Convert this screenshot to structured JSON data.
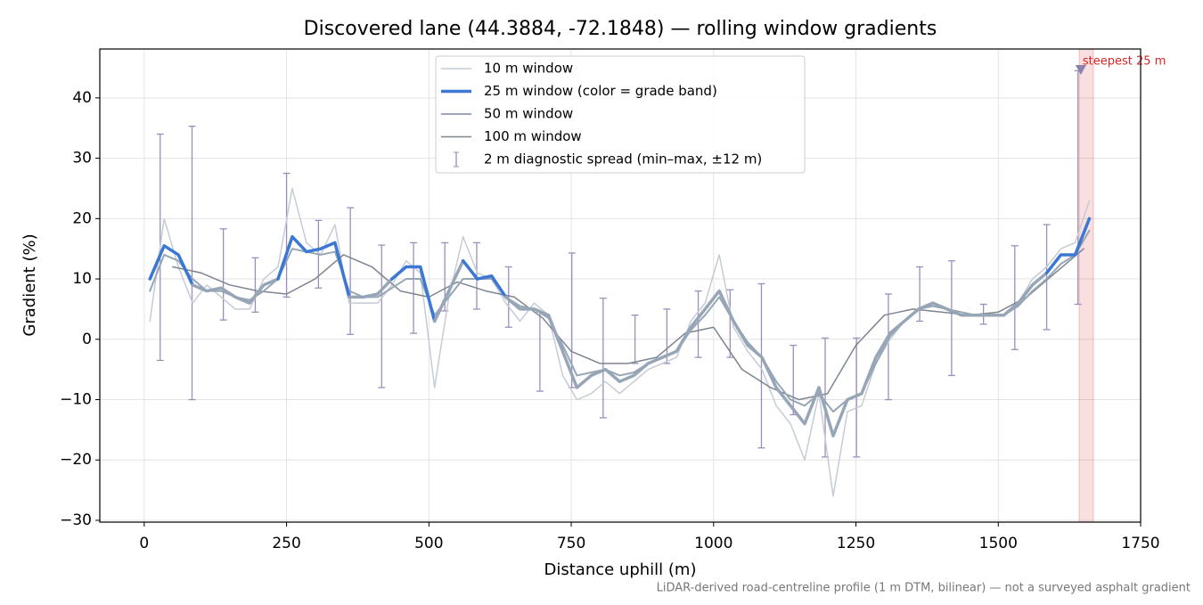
{
  "chart_data": {
    "type": "line",
    "title": "Discovered lane (44.3884, -72.1848) — rolling window gradients",
    "x_label": "Distance uphill (m)",
    "y_label": "Gradient (%)",
    "footnote": "LiDAR-derived road-centreline profile (1 m DTM, bilinear) — not a surveyed asphalt gradient",
    "xlim": [
      -78,
      1750
    ],
    "ylim": [
      -30.3,
      48.1
    ],
    "xticks": [
      0,
      250,
      500,
      750,
      1000,
      1250,
      1500,
      1750
    ],
    "yticks": [
      {
        "value": -30,
        "label": "−30"
      },
      {
        "value": -20,
        "label": "−20"
      },
      {
        "value": -10,
        "label": "−10"
      },
      0,
      10,
      20,
      30,
      40
    ],
    "grid": true,
    "legend": "upper center",
    "series": [
      {
        "name": "10 m window",
        "color": "#c4ccd6",
        "width": 1.5,
        "x": [
          10,
          35,
          60,
          85,
          110,
          135,
          160,
          185,
          210,
          235,
          260,
          285,
          310,
          335,
          360,
          385,
          410,
          435,
          460,
          485,
          510,
          535,
          560,
          585,
          610,
          635,
          660,
          685,
          710,
          735,
          760,
          785,
          810,
          835,
          860,
          885,
          910,
          935,
          960,
          985,
          1010,
          1035,
          1060,
          1085,
          1110,
          1135,
          1160,
          1185,
          1210,
          1235,
          1260,
          1285,
          1310,
          1335,
          1360,
          1385,
          1410,
          1435,
          1460,
          1485,
          1510,
          1535,
          1560,
          1585,
          1610,
          1635,
          1660
        ],
        "values": [
          3,
          20,
          12,
          6,
          9,
          7,
          5,
          5,
          10,
          12,
          25,
          16,
          14,
          19,
          6,
          6,
          6,
          9,
          13,
          11,
          -8,
          7,
          17,
          11,
          10,
          6,
          3,
          6,
          4,
          -6,
          -10,
          -9,
          -7,
          -9,
          -7,
          -5,
          -4,
          -3,
          3,
          6,
          14,
          2,
          -2,
          -5,
          -11,
          -14,
          -20,
          -9,
          -26,
          -12,
          -11,
          -4,
          0,
          3,
          5,
          6,
          5,
          4,
          4,
          4,
          4,
          6,
          10,
          12,
          15,
          16,
          23
        ]
      },
      {
        "name": "25 m window (color = grade band)",
        "color": "#3a78d4",
        "width": 3.5,
        "x": [
          10,
          35,
          60,
          85,
          110,
          135,
          160,
          185,
          210,
          235,
          260,
          285,
          310,
          335,
          360,
          385,
          410,
          435,
          460,
          485,
          510,
          535,
          560,
          585,
          610,
          635,
          660,
          685,
          710,
          735,
          760,
          785,
          810,
          835,
          860,
          885,
          910,
          935,
          960,
          985,
          1010,
          1035,
          1060,
          1085,
          1110,
          1135,
          1160,
          1185,
          1210,
          1235,
          1260,
          1285,
          1310,
          1335,
          1360,
          1385,
          1410,
          1435,
          1460,
          1485,
          1510,
          1535,
          1560,
          1585,
          1610,
          1635,
          1660
        ],
        "values": [
          10,
          15.5,
          14,
          9,
          8,
          8.5,
          7,
          6,
          9,
          10,
          17,
          14.5,
          15,
          16,
          7,
          7,
          7.5,
          10,
          12,
          12,
          3,
          8,
          13,
          10,
          10.5,
          7,
          5,
          5,
          4,
          -2,
          -8,
          -6,
          -5,
          -7,
          -6,
          -4,
          -3,
          -2,
          2,
          5,
          8,
          3,
          -1,
          -3,
          -8,
          -11,
          -14,
          -8,
          -16,
          -10,
          -9,
          -3,
          1,
          3,
          5,
          6,
          5,
          4,
          4,
          4,
          4,
          6,
          9,
          11,
          14,
          14,
          20
        ],
        "point_colors": [
          "#3a78d4",
          "#3a78d4",
          "#3a78d4",
          "#97a6b6",
          "#97a6b6",
          "#97a6b6",
          "#97a6b6",
          "#97a6b6",
          "#97a6b6",
          "#3a78d4",
          "#3a78d4",
          "#3a78d4",
          "#3a78d4",
          "#3a78d4",
          "#97a6b6",
          "#97a6b6",
          "#97a6b6",
          "#3a78d4",
          "#3a78d4",
          "#3a78d4",
          "#97a6b6",
          "#97a6b6",
          "#3a78d4",
          "#3a78d4",
          "#3a78d4",
          "#97a6b6",
          "#97a6b6",
          "#97a6b6",
          "#97a6b6",
          "#97a6b6",
          "#97a6b6",
          "#97a6b6",
          "#97a6b6",
          "#97a6b6",
          "#97a6b6",
          "#97a6b6",
          "#97a6b6",
          "#97a6b6",
          "#97a6b6",
          "#97a6b6",
          "#97a6b6",
          "#97a6b6",
          "#97a6b6",
          "#97a6b6",
          "#97a6b6",
          "#97a6b6",
          "#97a6b6",
          "#97a6b6",
          "#97a6b6",
          "#97a6b6",
          "#97a6b6",
          "#97a6b6",
          "#97a6b6",
          "#97a6b6",
          "#97a6b6",
          "#97a6b6",
          "#97a6b6",
          "#97a6b6",
          "#97a6b6",
          "#97a6b6",
          "#97a6b6",
          "#97a6b6",
          "#97a6b6",
          "#3a78d4",
          "#3a78d4",
          "#3a78d4",
          "#e8870f"
        ]
      },
      {
        "name": "50 m window",
        "color": "#97a6b6",
        "width": 2,
        "x": [
          10,
          35,
          60,
          85,
          110,
          135,
          160,
          185,
          210,
          235,
          260,
          285,
          310,
          335,
          360,
          385,
          410,
          435,
          460,
          485,
          510,
          535,
          560,
          585,
          610,
          635,
          660,
          685,
          710,
          735,
          760,
          785,
          810,
          835,
          860,
          885,
          910,
          935,
          960,
          985,
          1010,
          1035,
          1060,
          1085,
          1110,
          1135,
          1160,
          1185,
          1210,
          1235,
          1260,
          1285,
          1310,
          1335,
          1360,
          1385,
          1410,
          1435,
          1460,
          1485,
          1510,
          1535,
          1560,
          1585,
          1610,
          1635,
          1660
        ],
        "values": [
          8,
          14,
          13,
          10,
          8,
          8,
          7,
          6.5,
          8,
          10,
          15,
          14.5,
          14,
          14.5,
          8,
          7,
          7,
          8.5,
          10,
          10,
          4,
          7,
          10,
          10,
          10,
          7,
          5.5,
          5,
          3.5,
          -1,
          -6,
          -5.5,
          -5,
          -6,
          -5.5,
          -4,
          -3,
          -2,
          1.5,
          4,
          7,
          3,
          -0.5,
          -3,
          -7,
          -10,
          -11,
          -9,
          -12,
          -10,
          -9,
          -4,
          0.5,
          3,
          5,
          5.5,
          5,
          4.5,
          4,
          4,
          4,
          5.5,
          8,
          10,
          12.5,
          14,
          18
        ]
      },
      {
        "name": "100 m window",
        "color": "#7d8591",
        "width": 1.5,
        "x": [
          50,
          100,
          150,
          200,
          250,
          300,
          350,
          400,
          450,
          500,
          550,
          600,
          650,
          700,
          750,
          800,
          850,
          900,
          950,
          1000,
          1050,
          1100,
          1150,
          1200,
          1250,
          1300,
          1350,
          1400,
          1450,
          1500,
          1550,
          1600,
          1650
        ],
        "values": [
          12,
          11,
          9,
          8,
          7.5,
          10,
          14,
          12,
          8,
          7,
          9.5,
          8,
          7,
          3.5,
          -2,
          -4,
          -4,
          -3,
          1,
          2,
          -5,
          -8,
          -10,
          -9,
          -1,
          4,
          5,
          4.5,
          4,
          4.5,
          7,
          11,
          15
        ]
      }
    ],
    "errorbars": {
      "name": "2 m diagnostic spread (min–max, ±12 m)",
      "color": "#9a8fbb",
      "x": [
        28,
        84,
        139,
        195,
        250,
        306,
        362,
        417,
        473,
        528,
        584,
        640,
        695,
        751,
        806,
        862,
        918,
        973,
        1029,
        1084,
        1140,
        1196,
        1251,
        1307,
        1362,
        1418,
        1474,
        1529,
        1585,
        1640
      ],
      "low": [
        -3.5,
        -10,
        3.2,
        4.5,
        7,
        8.5,
        0.8,
        -8,
        1,
        4.7,
        5,
        2,
        -8.6,
        -8,
        -13,
        -4,
        -4,
        -3,
        -3,
        -18,
        -12.5,
        -19.5,
        -19.5,
        -10,
        3,
        -6,
        2.5,
        -1.7,
        1.6,
        5.8
      ],
      "high": [
        34,
        35.3,
        18.3,
        13.5,
        27.5,
        19.7,
        21.8,
        15.6,
        16,
        16,
        16,
        12,
        4.5,
        14.3,
        6.8,
        4,
        5,
        8,
        8.2,
        9.2,
        -1,
        0.2,
        0.2,
        7.5,
        12,
        13,
        5.8,
        15.5,
        19,
        44.5
      ]
    },
    "annotation": {
      "text": "steepest 25 m",
      "span": [
        1642,
        1667
      ],
      "marker": [
        1645,
        44.7
      ],
      "color": "#d62728"
    }
  }
}
